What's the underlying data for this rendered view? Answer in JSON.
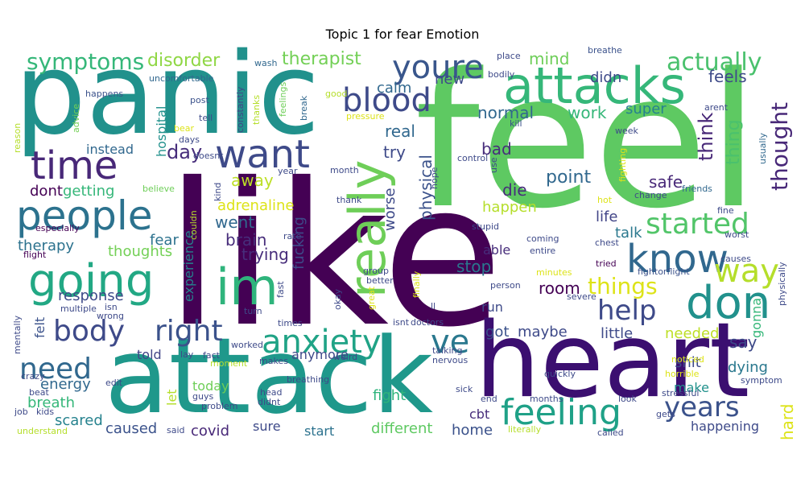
{
  "chart_data": {
    "type": "wordcloud",
    "title": "Topic 1 for fear Emotion",
    "background": "#ffffff",
    "palette": "viridis",
    "words": [
      {
        "text": "like",
        "weight": 1.0,
        "color": "#440154"
      },
      {
        "text": "feel",
        "weight": 0.95,
        "color": "#5ec962"
      },
      {
        "text": "panic",
        "weight": 0.62,
        "color": "#21918c"
      },
      {
        "text": "attack",
        "weight": 0.6,
        "color": "#1f988b"
      },
      {
        "text": "heart",
        "weight": 0.58,
        "color": "#3b0f70"
      },
      {
        "text": "attacks",
        "weight": 0.32,
        "color": "#35b779"
      },
      {
        "text": "really",
        "weight": 0.3,
        "color": "#6ece58"
      },
      {
        "text": "im",
        "weight": 0.27,
        "color": "#2fb47c"
      },
      {
        "text": "know",
        "weight": 0.27,
        "color": "#31688e"
      },
      {
        "text": "going",
        "weight": 0.27,
        "color": "#22a884"
      },
      {
        "text": "people",
        "weight": 0.25,
        "color": "#2c728e"
      },
      {
        "text": "don",
        "weight": 0.25,
        "color": "#21918c"
      },
      {
        "text": "want",
        "weight": 0.24,
        "color": "#3e4a89"
      },
      {
        "text": "anxiety",
        "weight": 0.23,
        "color": "#20a386"
      },
      {
        "text": "ve",
        "weight": 0.23,
        "color": "#2a788e"
      },
      {
        "text": "time",
        "weight": 0.22,
        "color": "#482878"
      },
      {
        "text": "youre",
        "weight": 0.21,
        "color": "#39568c"
      },
      {
        "text": "body",
        "weight": 0.2,
        "color": "#3e4a89"
      },
      {
        "text": "right",
        "weight": 0.2,
        "color": "#3b528b"
      },
      {
        "text": "feeling",
        "weight": 0.2,
        "color": "#1fa187"
      },
      {
        "text": "way",
        "weight": 0.19,
        "color": "#b5de2b"
      },
      {
        "text": "started",
        "weight": 0.19,
        "color": "#52c569"
      },
      {
        "text": "blood",
        "weight": 0.19,
        "color": "#3e4a89"
      },
      {
        "text": "years",
        "weight": 0.18,
        "color": "#3b528b"
      },
      {
        "text": "need",
        "weight": 0.17,
        "color": "#31688e"
      },
      {
        "text": "help",
        "weight": 0.17,
        "color": "#3e4a89"
      },
      {
        "text": "actually",
        "weight": 0.14,
        "color": "#4ac16d"
      },
      {
        "text": "symptoms",
        "weight": 0.13,
        "color": "#35b779"
      },
      {
        "text": "things",
        "weight": 0.13,
        "color": "#dde318"
      },
      {
        "text": "thought",
        "weight": 0.13,
        "color": "#482878"
      },
      {
        "text": "disorder",
        "weight": 0.1,
        "color": "#8fd744"
      },
      {
        "text": "therapist",
        "weight": 0.1,
        "color": "#73d056"
      },
      {
        "text": "mind",
        "weight": 0.09,
        "color": "#6ece58"
      },
      {
        "text": "didn",
        "weight": 0.08,
        "color": "#3e4a89"
      },
      {
        "text": "feels",
        "weight": 0.08,
        "color": "#3e4a89"
      },
      {
        "text": "new",
        "weight": 0.07,
        "color": "#3e4a89"
      },
      {
        "text": "calm",
        "weight": 0.07,
        "color": "#31688e"
      },
      {
        "text": "normal",
        "weight": 0.08,
        "color": "#31688e"
      },
      {
        "text": "work",
        "weight": 0.08,
        "color": "#35b779"
      },
      {
        "text": "super",
        "weight": 0.07,
        "color": "#26828e"
      },
      {
        "text": "think",
        "weight": 0.08,
        "color": "#482878"
      },
      {
        "text": "thing",
        "weight": 0.08,
        "color": "#4ac16d"
      },
      {
        "text": "day",
        "weight": 0.09,
        "color": "#472d7b"
      },
      {
        "text": "instead",
        "weight": 0.07,
        "color": "#31688e"
      },
      {
        "text": "real",
        "weight": 0.07,
        "color": "#31688e"
      },
      {
        "text": "try",
        "weight": 0.09,
        "color": "#3e4a89"
      },
      {
        "text": "bad",
        "weight": 0.08,
        "color": "#472d7b"
      },
      {
        "text": "physical",
        "weight": 0.08,
        "color": "#3b528b"
      },
      {
        "text": "point",
        "weight": 0.09,
        "color": "#31688e"
      },
      {
        "text": "safe",
        "weight": 0.08,
        "color": "#482878"
      },
      {
        "text": "away",
        "weight": 0.08,
        "color": "#bddf26"
      },
      {
        "text": "dont",
        "weight": 0.08,
        "color": "#440154"
      },
      {
        "text": "getting",
        "weight": 0.08,
        "color": "#35b779"
      },
      {
        "text": "die",
        "weight": 0.09,
        "color": "#472d7b"
      },
      {
        "text": "adrenaline",
        "weight": 0.08,
        "color": "#dde318"
      },
      {
        "text": "happen",
        "weight": 0.08,
        "color": "#b5de2b"
      },
      {
        "text": "worse",
        "weight": 0.08,
        "color": "#3e4a89"
      },
      {
        "text": "went",
        "weight": 0.08,
        "color": "#31688e"
      },
      {
        "text": "life",
        "weight": 0.08,
        "color": "#414487"
      },
      {
        "text": "talk",
        "weight": 0.08,
        "color": "#2a788e"
      },
      {
        "text": "brain",
        "weight": 0.08,
        "color": "#472d7b"
      },
      {
        "text": "fucking",
        "weight": 0.07,
        "color": "#3e4a89"
      },
      {
        "text": "fear",
        "weight": 0.08,
        "color": "#2c728e"
      },
      {
        "text": "therapy",
        "weight": 0.08,
        "color": "#2c728e"
      },
      {
        "text": "thoughts",
        "weight": 0.08,
        "color": "#73d056"
      },
      {
        "text": "experience",
        "weight": 0.07,
        "color": "#26828e"
      },
      {
        "text": "trying",
        "weight": 0.08,
        "color": "#472d7b"
      },
      {
        "text": "able",
        "weight": 0.07,
        "color": "#472d7b"
      },
      {
        "text": "stop",
        "weight": 0.08,
        "color": "#2a788e"
      },
      {
        "text": "room",
        "weight": 0.08,
        "color": "#440154"
      },
      {
        "text": "response",
        "weight": 0.08,
        "color": "#3e4a89"
      },
      {
        "text": "felt",
        "weight": 0.07,
        "color": "#3b528b"
      },
      {
        "text": "run",
        "weight": 0.07,
        "color": "#3e4a89"
      },
      {
        "text": "got",
        "weight": 0.08,
        "color": "#3b528b"
      },
      {
        "text": "maybe",
        "weight": 0.08,
        "color": "#3e4a89"
      },
      {
        "text": "little",
        "weight": 0.08,
        "color": "#3e4a89"
      },
      {
        "text": "needed",
        "weight": 0.07,
        "color": "#bddf26"
      },
      {
        "text": "gonna",
        "weight": 0.07,
        "color": "#35b779"
      },
      {
        "text": "say",
        "weight": 0.08,
        "color": "#3e4a89"
      },
      {
        "text": "anymore",
        "weight": 0.07,
        "color": "#3e4a89"
      },
      {
        "text": "told",
        "weight": 0.07,
        "color": "#414487"
      },
      {
        "text": "shit",
        "weight": 0.07,
        "color": "#3e4a89"
      },
      {
        "text": "dying",
        "weight": 0.08,
        "color": "#2a788e"
      },
      {
        "text": "energy",
        "weight": 0.08,
        "color": "#31688e"
      },
      {
        "text": "today",
        "weight": 0.07,
        "color": "#6ece58"
      },
      {
        "text": "let",
        "weight": 0.07,
        "color": "#b5de2b"
      },
      {
        "text": "fight",
        "weight": 0.08,
        "color": "#2fb47c"
      },
      {
        "text": "make",
        "weight": 0.07,
        "color": "#21918c"
      },
      {
        "text": "breath",
        "weight": 0.08,
        "color": "#35b779"
      },
      {
        "text": "scared",
        "weight": 0.08,
        "color": "#26828e"
      },
      {
        "text": "caused",
        "weight": 0.07,
        "color": "#3b528b"
      },
      {
        "text": "covid",
        "weight": 0.07,
        "color": "#482878"
      },
      {
        "text": "sure",
        "weight": 0.07,
        "color": "#3e4a89"
      },
      {
        "text": "start",
        "weight": 0.07,
        "color": "#2c728e"
      },
      {
        "text": "different",
        "weight": 0.07,
        "color": "#5ec962"
      },
      {
        "text": "cbt",
        "weight": 0.07,
        "color": "#472d7b"
      },
      {
        "text": "home",
        "weight": 0.07,
        "color": "#3b528b"
      },
      {
        "text": "hard",
        "weight": 0.08,
        "color": "#dde318"
      },
      {
        "text": "happening",
        "weight": 0.07,
        "color": "#3e4a89"
      },
      {
        "text": "hospital",
        "weight": 0.06,
        "color": "#21918c"
      },
      {
        "text": "advice",
        "weight": 0.04,
        "color": "#73d056"
      },
      {
        "text": "constantly",
        "weight": 0.04,
        "color": "#414487"
      },
      {
        "text": "thanks",
        "weight": 0.04,
        "color": "#b5de2b"
      },
      {
        "text": "feelings",
        "weight": 0.04,
        "color": "#6ece58"
      },
      {
        "text": "break",
        "weight": 0.04,
        "color": "#31688e"
      },
      {
        "text": "pressure",
        "weight": 0.04,
        "color": "#dde318"
      },
      {
        "text": "uncomfortable",
        "weight": 0.04,
        "color": "#31688e"
      },
      {
        "text": "wash",
        "weight": 0.04,
        "color": "#31688e"
      },
      {
        "text": "good",
        "weight": 0.04,
        "color": "#b5de2b"
      },
      {
        "text": "couldn",
        "weight": 0.04,
        "color": "#b5de2b"
      },
      {
        "text": "happens",
        "weight": 0.04,
        "color": "#3b528b"
      },
      {
        "text": "post",
        "weight": 0.04,
        "color": "#3b528b"
      },
      {
        "text": "tell",
        "weight": 0.04,
        "color": "#3e4a89"
      },
      {
        "text": "reason",
        "weight": 0.04,
        "color": "#b5de2b"
      },
      {
        "text": "days",
        "weight": 0.04,
        "color": "#3e4a89"
      },
      {
        "text": "doesnt",
        "weight": 0.04,
        "color": "#3e4a89"
      },
      {
        "text": "bear",
        "weight": 0.04,
        "color": "#dde318"
      },
      {
        "text": "place",
        "weight": 0.04,
        "color": "#3e4a89"
      },
      {
        "text": "bodily",
        "weight": 0.04,
        "color": "#3e4a89"
      },
      {
        "text": "breathe",
        "weight": 0.04,
        "color": "#3b528b"
      },
      {
        "text": "kill",
        "weight": 0.04,
        "color": "#3b528b"
      },
      {
        "text": "arent",
        "weight": 0.04,
        "color": "#3e4a89"
      },
      {
        "text": "week",
        "weight": 0.04,
        "color": "#3e4a89"
      },
      {
        "text": "usually",
        "weight": 0.04,
        "color": "#31688e"
      },
      {
        "text": "fighting",
        "weight": 0.04,
        "color": "#dde318"
      },
      {
        "text": "control",
        "weight": 0.04,
        "color": "#3e4a89"
      },
      {
        "text": "use",
        "weight": 0.04,
        "color": "#3e4a89"
      },
      {
        "text": "change",
        "weight": 0.04,
        "color": "#3e4a89"
      },
      {
        "text": "friends",
        "weight": 0.04,
        "color": "#31688e"
      },
      {
        "text": "believe",
        "weight": 0.04,
        "color": "#6ece58"
      },
      {
        "text": "kind",
        "weight": 0.04,
        "color": "#3e4a89"
      },
      {
        "text": "year",
        "weight": 0.04,
        "color": "#3e4a89"
      },
      {
        "text": "month",
        "weight": 0.04,
        "color": "#3e4a89"
      },
      {
        "text": "hope",
        "weight": 0.04,
        "color": "#3e4a89"
      },
      {
        "text": "thank",
        "weight": 0.04,
        "color": "#3e4a89"
      },
      {
        "text": "hot",
        "weight": 0.04,
        "color": "#dde318"
      },
      {
        "text": "fine",
        "weight": 0.04,
        "color": "#3e4a89"
      },
      {
        "text": "especially",
        "weight": 0.04,
        "color": "#440154"
      },
      {
        "text": "flight",
        "weight": 0.04,
        "color": "#440154"
      },
      {
        "text": "rate",
        "weight": 0.04,
        "color": "#3e4a89"
      },
      {
        "text": "stupid",
        "weight": 0.04,
        "color": "#3e4a89"
      },
      {
        "text": "coming",
        "weight": 0.04,
        "color": "#3e4a89"
      },
      {
        "text": "entire",
        "weight": 0.04,
        "color": "#3e4a89"
      },
      {
        "text": "chest",
        "weight": 0.04,
        "color": "#3e4a89"
      },
      {
        "text": "worst",
        "weight": 0.04,
        "color": "#3e4a89"
      },
      {
        "text": "causes",
        "weight": 0.04,
        "color": "#3e4a89"
      },
      {
        "text": "tried",
        "weight": 0.04,
        "color": "#440154"
      },
      {
        "text": "fightorflight",
        "weight": 0.04,
        "color": "#3b528b"
      },
      {
        "text": "physically",
        "weight": 0.04,
        "color": "#3e4a89"
      },
      {
        "text": "group",
        "weight": 0.04,
        "color": "#3e4a89"
      },
      {
        "text": "better",
        "weight": 0.04,
        "color": "#3e4a89"
      },
      {
        "text": "great",
        "weight": 0.04,
        "color": "#dde318"
      },
      {
        "text": "finally",
        "weight": 0.04,
        "color": "#dde318"
      },
      {
        "text": "minutes",
        "weight": 0.04,
        "color": "#dde318"
      },
      {
        "text": "person",
        "weight": 0.04,
        "color": "#3e4a89"
      },
      {
        "text": "severe",
        "weight": 0.04,
        "color": "#3e4a89"
      },
      {
        "text": "multiple",
        "weight": 0.04,
        "color": "#3e4a89"
      },
      {
        "text": "isn",
        "weight": 0.04,
        "color": "#3e4a89"
      },
      {
        "text": "wrong",
        "weight": 0.04,
        "color": "#3e4a89"
      },
      {
        "text": "turn",
        "weight": 0.04,
        "color": "#3e4a89"
      },
      {
        "text": "fast",
        "weight": 0.04,
        "color": "#3e4a89"
      },
      {
        "text": "okay",
        "weight": 0.04,
        "color": "#3e4a89"
      },
      {
        "text": "ll",
        "weight": 0.04,
        "color": "#3e4a89"
      },
      {
        "text": "times",
        "weight": 0.04,
        "color": "#3e4a89"
      },
      {
        "text": "isnt",
        "weight": 0.04,
        "color": "#3e4a89"
      },
      {
        "text": "doctors",
        "weight": 0.04,
        "color": "#3e4a89"
      },
      {
        "text": "mentally",
        "weight": 0.04,
        "color": "#3e4a89"
      },
      {
        "text": "lay",
        "weight": 0.04,
        "color": "#3e4a89"
      },
      {
        "text": "fact",
        "weight": 0.04,
        "color": "#3e4a89"
      },
      {
        "text": "worked",
        "weight": 0.04,
        "color": "#3e4a89"
      },
      {
        "text": "moment",
        "weight": 0.04,
        "color": "#b5de2b"
      },
      {
        "text": "makes",
        "weight": 0.04,
        "color": "#3e4a89"
      },
      {
        "text": "weird",
        "weight": 0.04,
        "color": "#3e4a89"
      },
      {
        "text": "talking",
        "weight": 0.04,
        "color": "#3e4a89"
      },
      {
        "text": "nervous",
        "weight": 0.04,
        "color": "#3e4a89"
      },
      {
        "text": "noticed",
        "weight": 0.04,
        "color": "#dde318"
      },
      {
        "text": "horrible",
        "weight": 0.04,
        "color": "#dde318"
      },
      {
        "text": "symptom",
        "weight": 0.04,
        "color": "#3e4a89"
      },
      {
        "text": "stressful",
        "weight": 0.04,
        "color": "#3e4a89"
      },
      {
        "text": "quickly",
        "weight": 0.04,
        "color": "#3e4a89"
      },
      {
        "text": "crazy",
        "weight": 0.04,
        "color": "#3e4a89"
      },
      {
        "text": "beat",
        "weight": 0.04,
        "color": "#3e4a89"
      },
      {
        "text": "edit",
        "weight": 0.04,
        "color": "#3e4a89"
      },
      {
        "text": "guys",
        "weight": 0.04,
        "color": "#3e4a89"
      },
      {
        "text": "breathing",
        "weight": 0.04,
        "color": "#3e4a89"
      },
      {
        "text": "head",
        "weight": 0.04,
        "color": "#3e4a89"
      },
      {
        "text": "didnt",
        "weight": 0.04,
        "color": "#3e4a89"
      },
      {
        "text": "sick",
        "weight": 0.04,
        "color": "#3e4a89"
      },
      {
        "text": "end",
        "weight": 0.04,
        "color": "#3e4a89"
      },
      {
        "text": "months",
        "weight": 0.04,
        "color": "#3e4a89"
      },
      {
        "text": "look",
        "weight": 0.04,
        "color": "#3e4a89"
      },
      {
        "text": "gets",
        "weight": 0.04,
        "color": "#3e4a89"
      },
      {
        "text": "job",
        "weight": 0.04,
        "color": "#3e4a89"
      },
      {
        "text": "kids",
        "weight": 0.04,
        "color": "#3e4a89"
      },
      {
        "text": "problem",
        "weight": 0.04,
        "color": "#3e4a89"
      },
      {
        "text": "understand",
        "weight": 0.04,
        "color": "#b5de2b"
      },
      {
        "text": "said",
        "weight": 0.04,
        "color": "#3e4a89"
      },
      {
        "text": "literally",
        "weight": 0.04,
        "color": "#b5de2b"
      },
      {
        "text": "called",
        "weight": 0.04,
        "color": "#3e4a89"
      }
    ]
  }
}
